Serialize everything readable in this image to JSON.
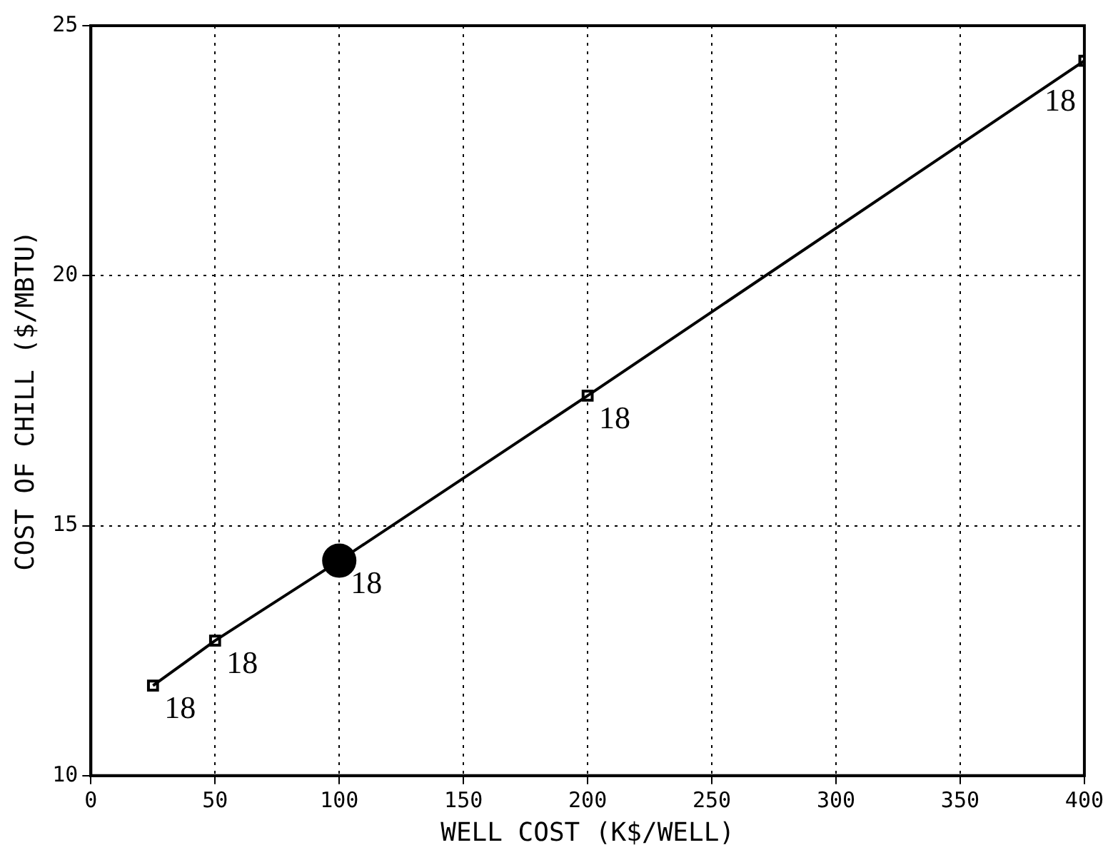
{
  "chart_data": {
    "type": "line",
    "xlabel": "WELL COST (K$/WELL)",
    "ylabel": "COST OF CHILL ($/MBTU)",
    "xlim": [
      0,
      400
    ],
    "xticks": [
      0,
      50,
      100,
      150,
      200,
      250,
      300,
      350,
      400
    ],
    "ylim": [
      10,
      25
    ],
    "yticks": [
      10,
      15,
      20,
      25
    ],
    "grid": true,
    "legend": false,
    "series": [
      {
        "color": "#000000",
        "marker": "none",
        "line_style": "solid",
        "x": [
          25,
          50,
          100,
          200,
          400
        ],
        "values": [
          11.8,
          12.7,
          14.3,
          17.6,
          24.3
        ]
      },
      {
        "type": "scatter",
        "color": "#000000",
        "marker": "square",
        "x": [
          25,
          50,
          200,
          400
        ],
        "values": [
          11.8,
          12.7,
          17.6,
          24.3
        ]
      },
      {
        "type": "scatter",
        "color": "#000000",
        "marker": "circle",
        "x": [
          100
        ],
        "values": [
          14.3
        ]
      }
    ],
    "annotations": [
      {
        "text": "18",
        "x": 25,
        "y": 11.8
      },
      {
        "text": "18",
        "x": 50,
        "y": 12.7
      },
      {
        "text": "18",
        "x": 100,
        "y": 14.3
      },
      {
        "text": "18",
        "x": 200,
        "y": 17.6
      },
      {
        "text": "18",
        "x": 400,
        "y": 24.3
      }
    ]
  }
}
